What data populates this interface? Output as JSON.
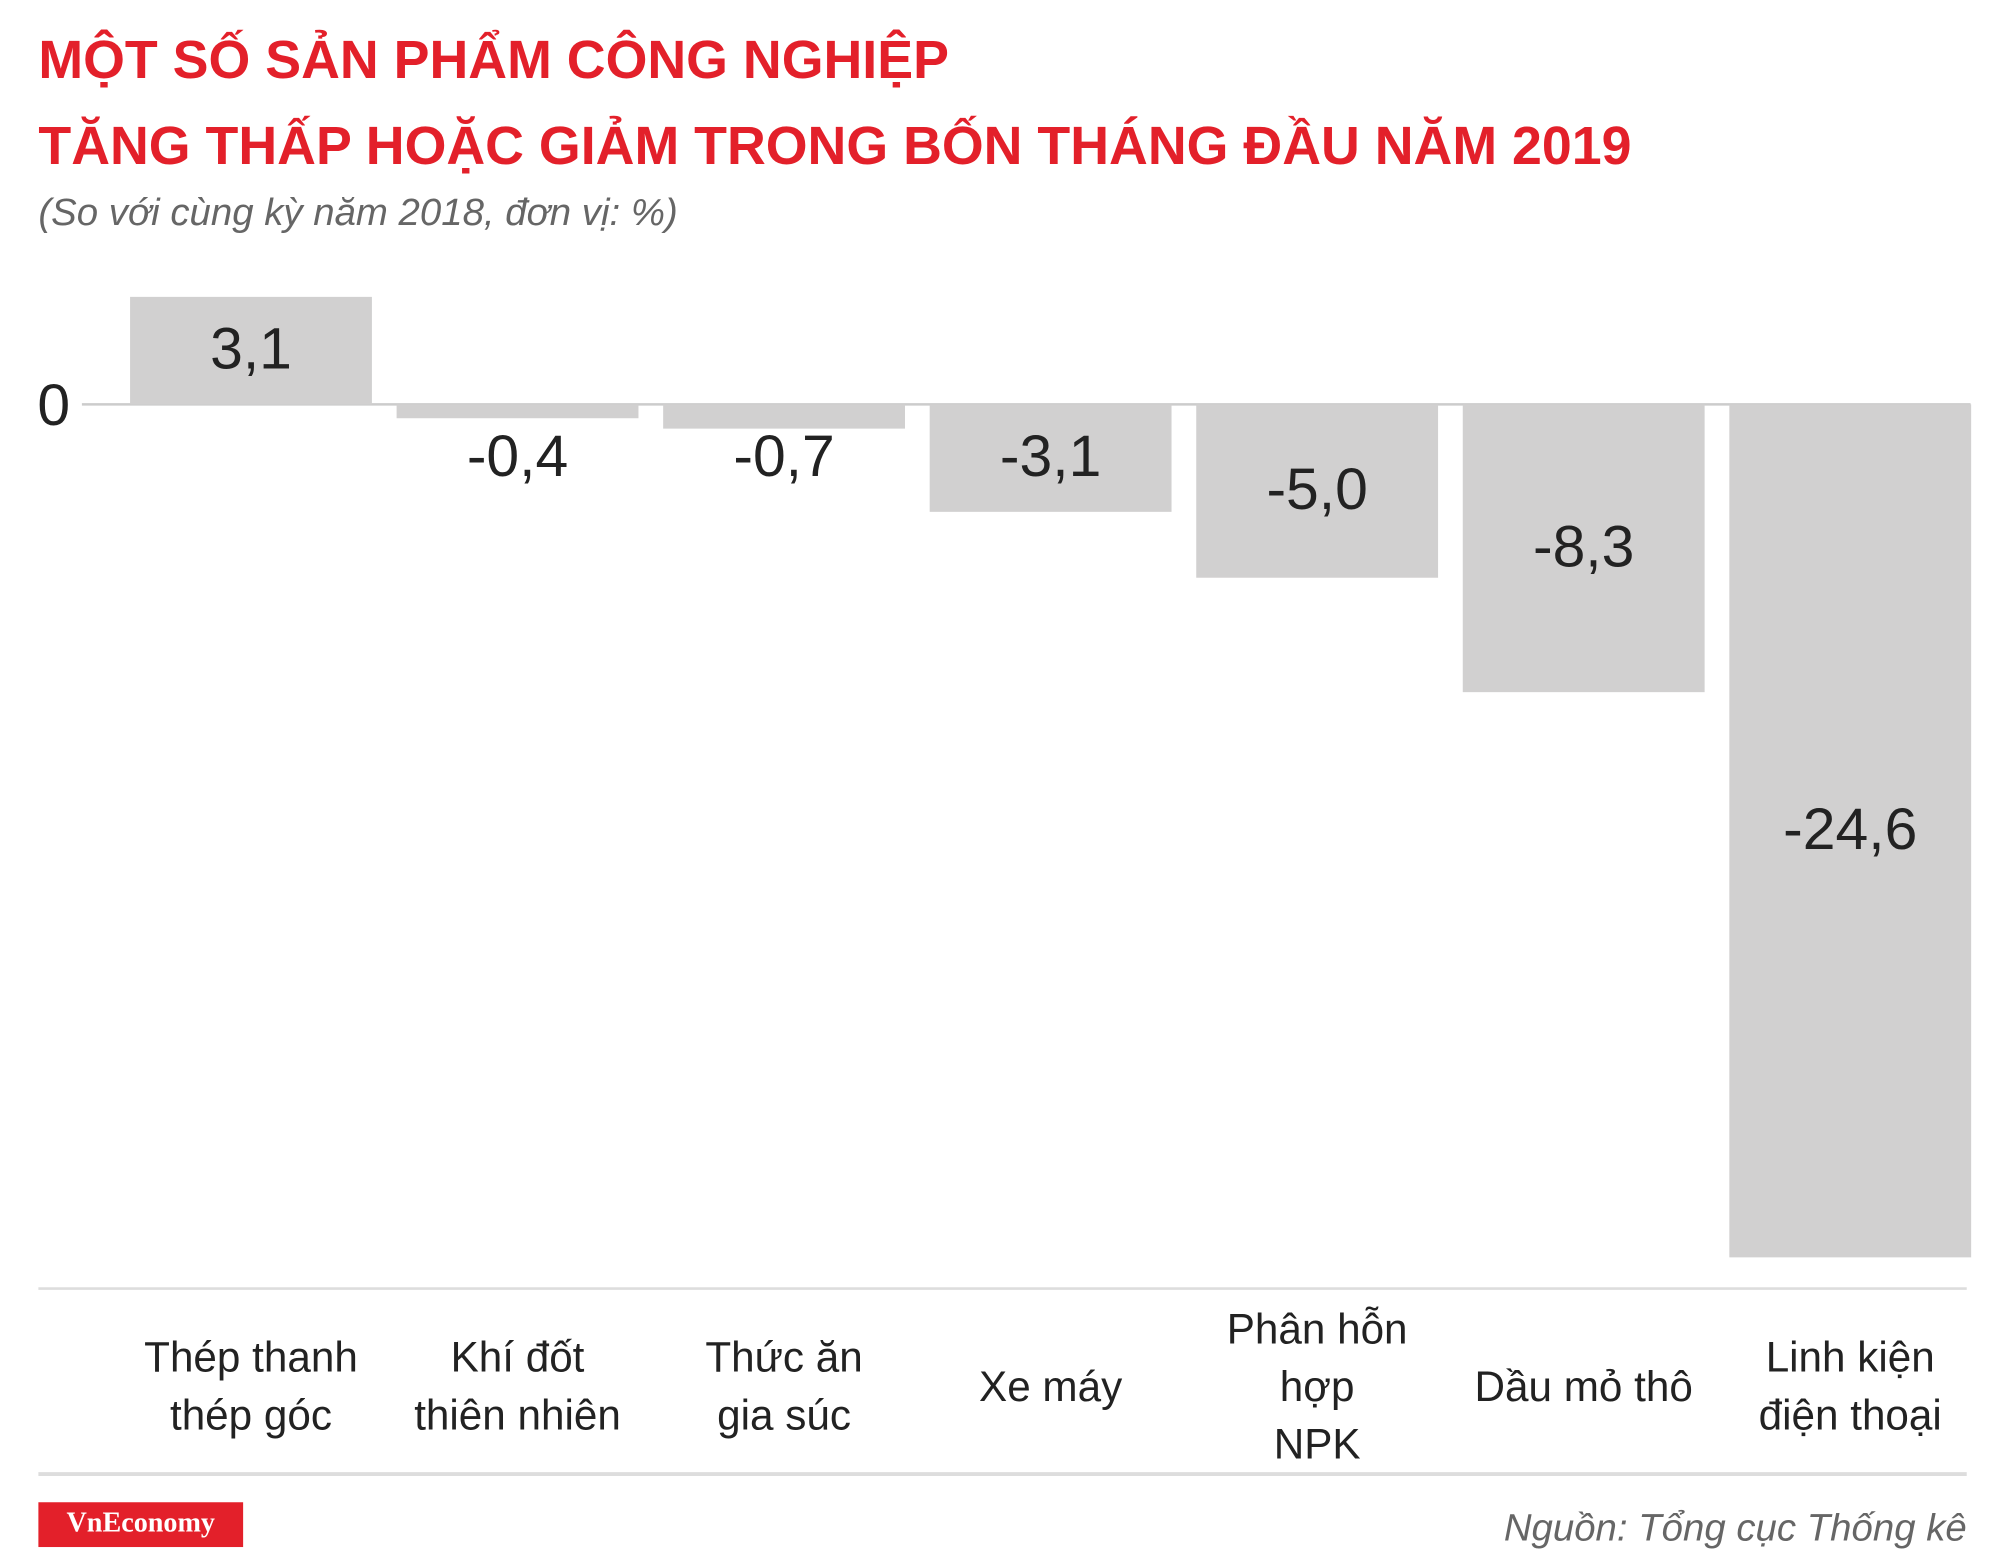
{
  "chart_data": {
    "type": "bar",
    "title": [
      "MỘT SỐ SẢN PHẨM CÔNG NGHIỆP",
      "TĂNG THẤP HOẶC GIẢM TRONG BỐN THÁNG ĐẦU NĂM 2019"
    ],
    "subtitle": "(So với cùng kỳ năm 2018, đơn vị: %)",
    "categories": [
      "Thép thanh\nthép góc",
      "Khí đốt\nthiên nhiên",
      "Thức ăn\ngia súc",
      "Xe máy",
      "Phân hỗn hợp\nNPK",
      "Dầu mỏ thô",
      "Linh kiện\nđiện thoại"
    ],
    "values": [
      3.1,
      -0.4,
      -0.7,
      -3.1,
      -5.0,
      -8.3,
      -24.6
    ],
    "value_labels": [
      "3,1",
      "-0,4",
      "-0,7",
      "-3,1",
      "-5,0",
      "-8,3",
      "-24,6"
    ],
    "color": "#d1d0d0",
    "ylim": [
      -25.5,
      3.1
    ],
    "yticks": [
      0
    ],
    "source": "Nguồn: Tổng cục Thống kê",
    "logo": "VnEconomy"
  }
}
